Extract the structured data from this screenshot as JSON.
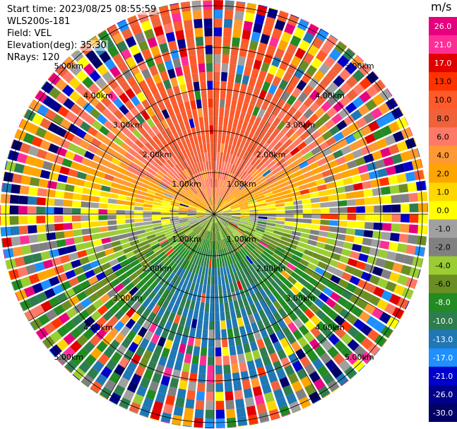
{
  "header": {
    "start_time": "Start time: 2023/08/25 08:55:59",
    "instrument": "WLS200s-181",
    "field": "Field: VEL",
    "elevation": "Elevation(deg): 35.30",
    "nrays": "NRays: 120"
  },
  "chart_data": {
    "type": "heatmap",
    "projection": "polar-ppi",
    "field": "VEL",
    "units": "m/s",
    "n_rays": 120,
    "range_rings_km": [
      1.0,
      2.0,
      3.0,
      4.0,
      5.0
    ],
    "ring_labels": [
      "1.00km",
      "2.00km",
      "3.00km",
      "4.00km",
      "5.00km"
    ],
    "max_range_km": 6.4,
    "colorbar_levels": [
      26.0,
      21.0,
      17.0,
      13.0,
      10.0,
      8.0,
      6.0,
      4.0,
      2.0,
      1.0,
      0.0,
      -1.0,
      -2.0,
      -4.0,
      -6.0,
      -8.0,
      -10.0,
      -13.0,
      -17.0,
      -21.0,
      -26.0,
      -30.0
    ],
    "colorbar_colors": [
      "#e6007e",
      "#ff2d96",
      "#e00000",
      "#ff3300",
      "#ff5a2a",
      "#f0623a",
      "#ff7a66",
      "#ff9933",
      "#ffa500",
      "#ffd700",
      "#ffff00",
      "#a0a0a0",
      "#808080",
      "#9acd32",
      "#6b8e23",
      "#228b22",
      "#2e7d4f",
      "#1f77b4",
      "#1e90ff",
      "#0000cd",
      "#00008b",
      "#000066"
    ],
    "pattern": "toward lidar (negative) to the south, away (positive) to the north; near-zero gray band along east-west axis; outer gates noisy"
  }
}
